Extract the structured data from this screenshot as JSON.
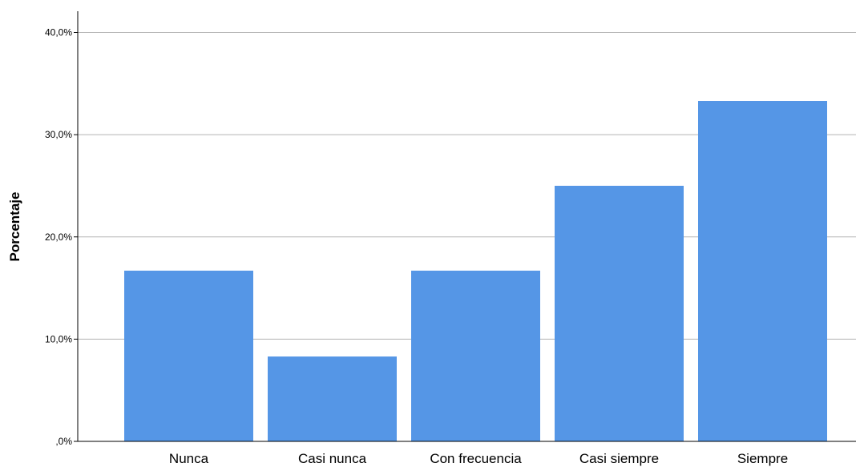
{
  "chart_data": {
    "type": "bar",
    "categories": [
      "Nunca",
      "Casi nunca",
      "Con frecuencia",
      "Casi siempre",
      "Siempre"
    ],
    "values": [
      16.7,
      8.3,
      16.7,
      25.0,
      33.3
    ],
    "title": "",
    "xlabel": "",
    "ylabel": "Porcentaje",
    "ylim": [
      0,
      40
    ],
    "yticks": [
      0,
      10,
      20,
      30,
      40
    ],
    "ytick_labels": [
      ",0%",
      "10,0%",
      "20,0%",
      "30,0%",
      "40,0%"
    ],
    "grid": true,
    "bar_color": "#5596E6",
    "grid_color": "#B3B3B3"
  }
}
